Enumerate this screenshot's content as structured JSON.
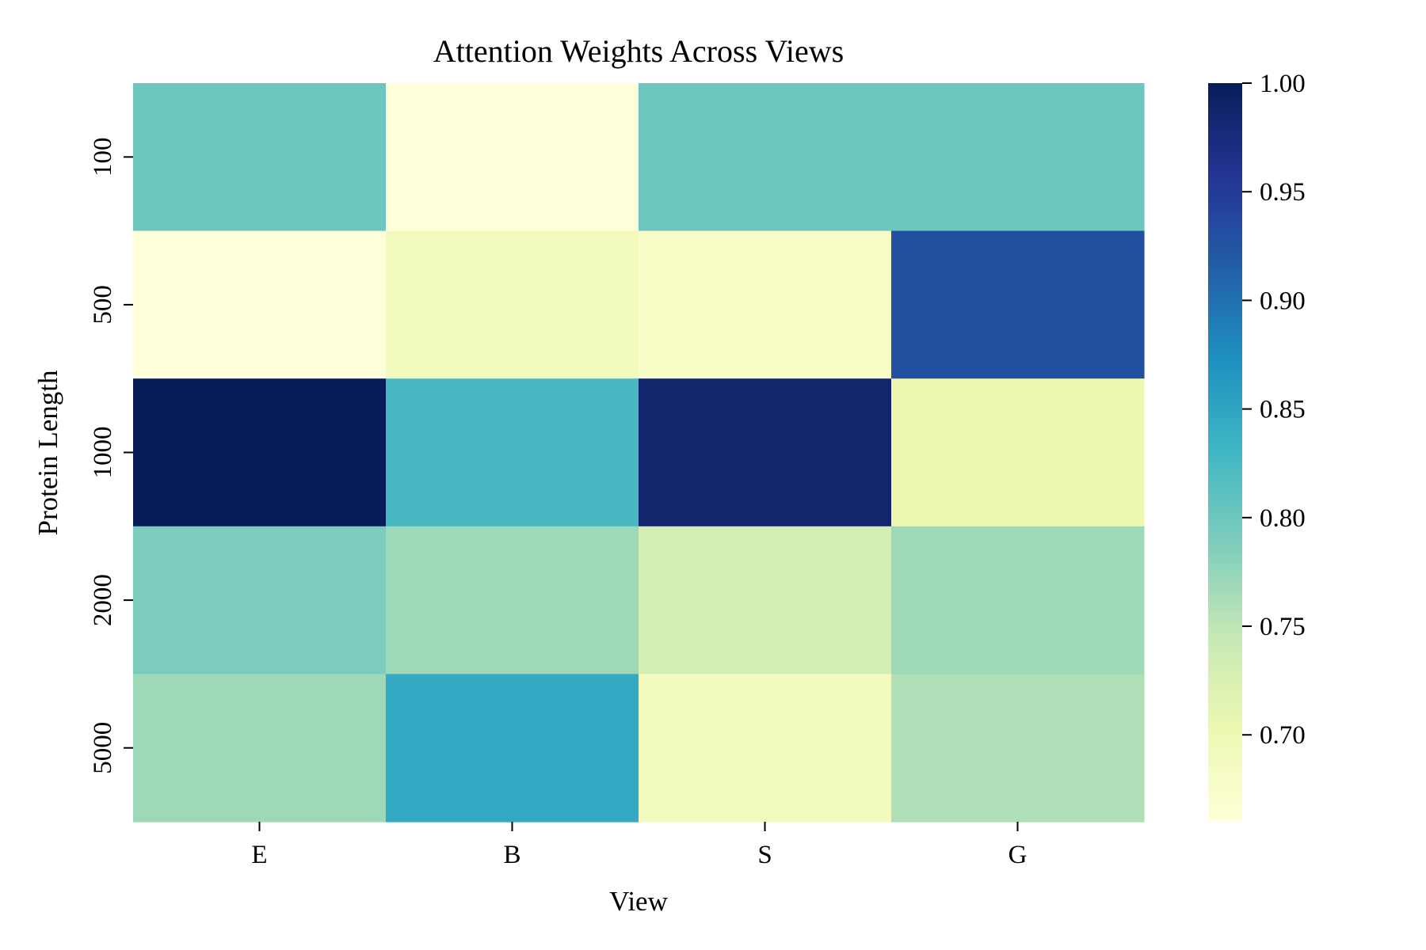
{
  "chart_data": {
    "type": "heatmap",
    "title": "Attention Weights Across Views",
    "xlabel": "View",
    "ylabel": "Protein Length",
    "x_categories": [
      "E",
      "B",
      "S",
      "G"
    ],
    "y_categories": [
      "100",
      "500",
      "1000",
      "2000",
      "5000"
    ],
    "values": [
      [
        0.8,
        0.66,
        0.8,
        0.8
      ],
      [
        0.66,
        0.69,
        0.68,
        0.93
      ],
      [
        1.0,
        0.825,
        0.985,
        0.7
      ],
      [
        0.79,
        0.77,
        0.73,
        0.77
      ],
      [
        0.77,
        0.845,
        0.69,
        0.76
      ]
    ],
    "colorbar": {
      "vmin": 0.66,
      "vmax": 1.0,
      "ticks": [
        "0.70",
        "0.75",
        "0.80",
        "0.85",
        "0.90",
        "0.95",
        "1.00"
      ],
      "colormap": "YlGnBu"
    },
    "grid": false,
    "legend": "none"
  }
}
